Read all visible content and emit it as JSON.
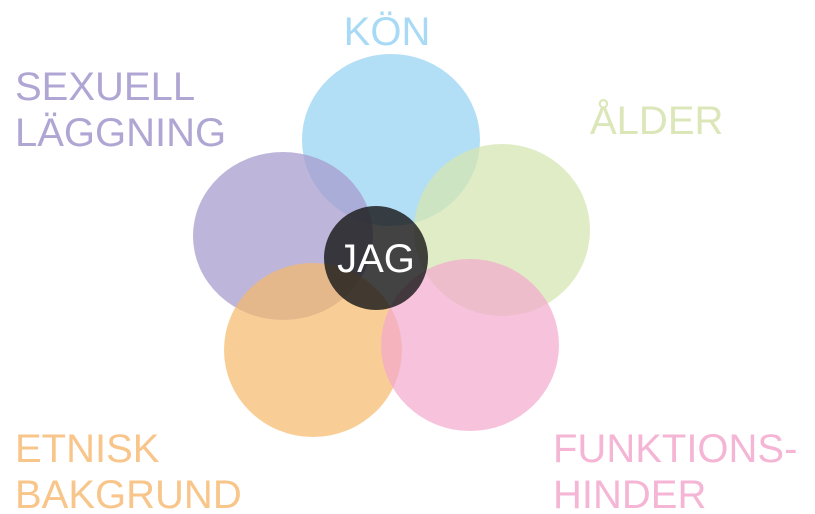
{
  "center": {
    "label": "JAG"
  },
  "nodes": [
    {
      "lines": [
        "KÖN"
      ]
    },
    {
      "lines": [
        "ÅLDER"
      ]
    },
    {
      "lines": [
        "FUNKTIONS-",
        "HINDER"
      ]
    },
    {
      "lines": [
        "ETNISK",
        "BAKGRUND"
      ]
    },
    {
      "lines": [
        "SEXUELL",
        "LÄGGNING"
      ]
    }
  ]
}
